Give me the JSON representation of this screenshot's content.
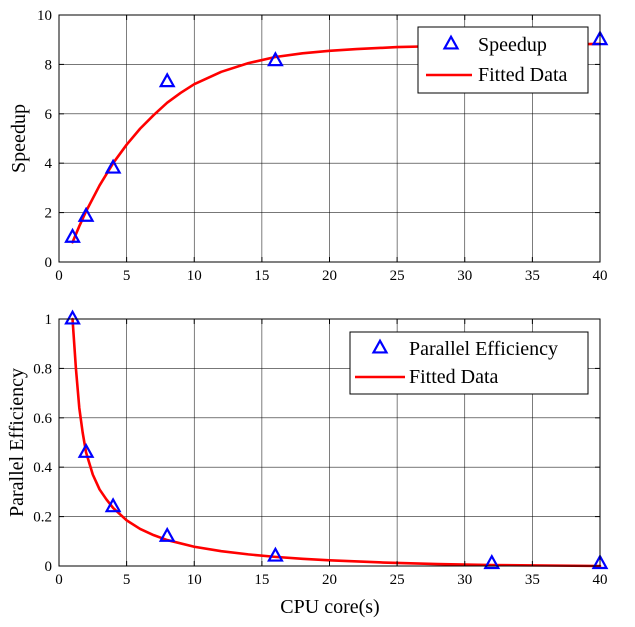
{
  "chart_data": [
    {
      "type": "line",
      "ylabel": "Speedup",
      "xlabel": "",
      "xlim": [
        0,
        40
      ],
      "ylim": [
        0,
        10
      ],
      "xticks": [
        0,
        5,
        10,
        15,
        20,
        25,
        30,
        35,
        40
      ],
      "yticks": [
        0,
        2,
        4,
        6,
        8,
        10
      ],
      "grid": true,
      "legend_position": "top-right",
      "series": [
        {
          "name": "Speedup",
          "kind": "scatter",
          "marker": "triangle",
          "color": "#0000ff",
          "x": [
            1,
            2,
            4,
            8,
            16,
            40
          ],
          "y": [
            1.0,
            1.85,
            3.8,
            7.3,
            8.15,
            9.0
          ]
        },
        {
          "name": "Fitted Data",
          "kind": "line",
          "color": "#ff0000",
          "x": [
            1,
            1.5,
            2,
            3,
            4,
            5,
            6,
            7,
            8,
            9,
            10,
            12,
            14,
            16,
            18,
            20,
            22,
            25,
            28,
            30,
            32,
            35,
            38,
            40
          ],
          "y": [
            0.8,
            1.45,
            2.05,
            3.1,
            4.0,
            4.75,
            5.4,
            5.95,
            6.45,
            6.85,
            7.2,
            7.7,
            8.05,
            8.3,
            8.45,
            8.55,
            8.62,
            8.7,
            8.74,
            8.76,
            8.78,
            8.8,
            8.82,
            8.83
          ]
        }
      ]
    },
    {
      "type": "line",
      "ylabel": "Parallel Efficiency",
      "xlabel": "CPU core(s)",
      "xlim": [
        0,
        40
      ],
      "ylim": [
        0,
        1
      ],
      "xticks": [
        0,
        5,
        10,
        15,
        20,
        25,
        30,
        35,
        40
      ],
      "yticks": [
        0,
        0.2,
        0.4,
        0.6,
        0.8,
        1
      ],
      "grid": true,
      "legend_position": "top-right",
      "series": [
        {
          "name": "Parallel Efficiency",
          "kind": "scatter",
          "marker": "triangle",
          "color": "#0000ff",
          "x": [
            1,
            2,
            4,
            8,
            16,
            32,
            40
          ],
          "y": [
            1.0,
            0.46,
            0.24,
            0.12,
            0.04,
            0.01,
            0.01
          ]
        },
        {
          "name": "Fitted Data",
          "kind": "line",
          "color": "#ff0000",
          "x": [
            1,
            1.25,
            1.5,
            1.75,
            2,
            2.5,
            3,
            3.5,
            4,
            5,
            6,
            7,
            8,
            10,
            12,
            14,
            16,
            18,
            20,
            24,
            28,
            32,
            36,
            40
          ],
          "y": [
            1.0,
            0.8,
            0.64,
            0.54,
            0.46,
            0.37,
            0.31,
            0.27,
            0.235,
            0.185,
            0.15,
            0.125,
            0.105,
            0.078,
            0.06,
            0.047,
            0.037,
            0.029,
            0.023,
            0.014,
            0.008,
            0.004,
            0.002,
            0.0
          ]
        }
      ]
    }
  ]
}
